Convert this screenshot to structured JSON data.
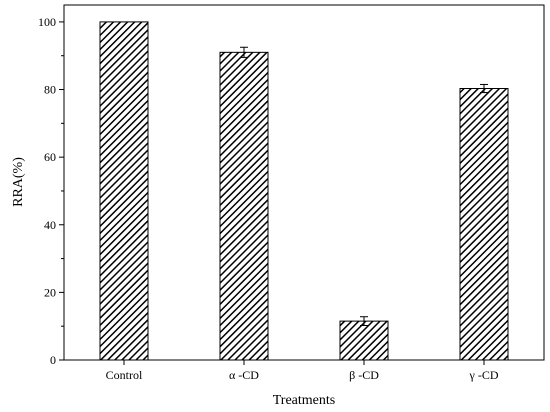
{
  "chart_data": {
    "type": "bar",
    "title": "",
    "xlabel": "Treatments",
    "ylabel": "RRA(%)",
    "categories": [
      "Control",
      "α -CD",
      "β -CD",
      "γ -CD"
    ],
    "values": [
      100,
      91,
      11.5,
      80.3
    ],
    "errors": [
      0,
      1.5,
      1.3,
      1.2
    ],
    "ylim": [
      0,
      105
    ],
    "yticks": [
      0,
      20,
      40,
      60,
      80,
      100
    ],
    "grid": false,
    "legend": "none",
    "bar_fill_pattern": "diagonal-hatch",
    "bar_color": "#000000",
    "background": "#ffffff"
  }
}
